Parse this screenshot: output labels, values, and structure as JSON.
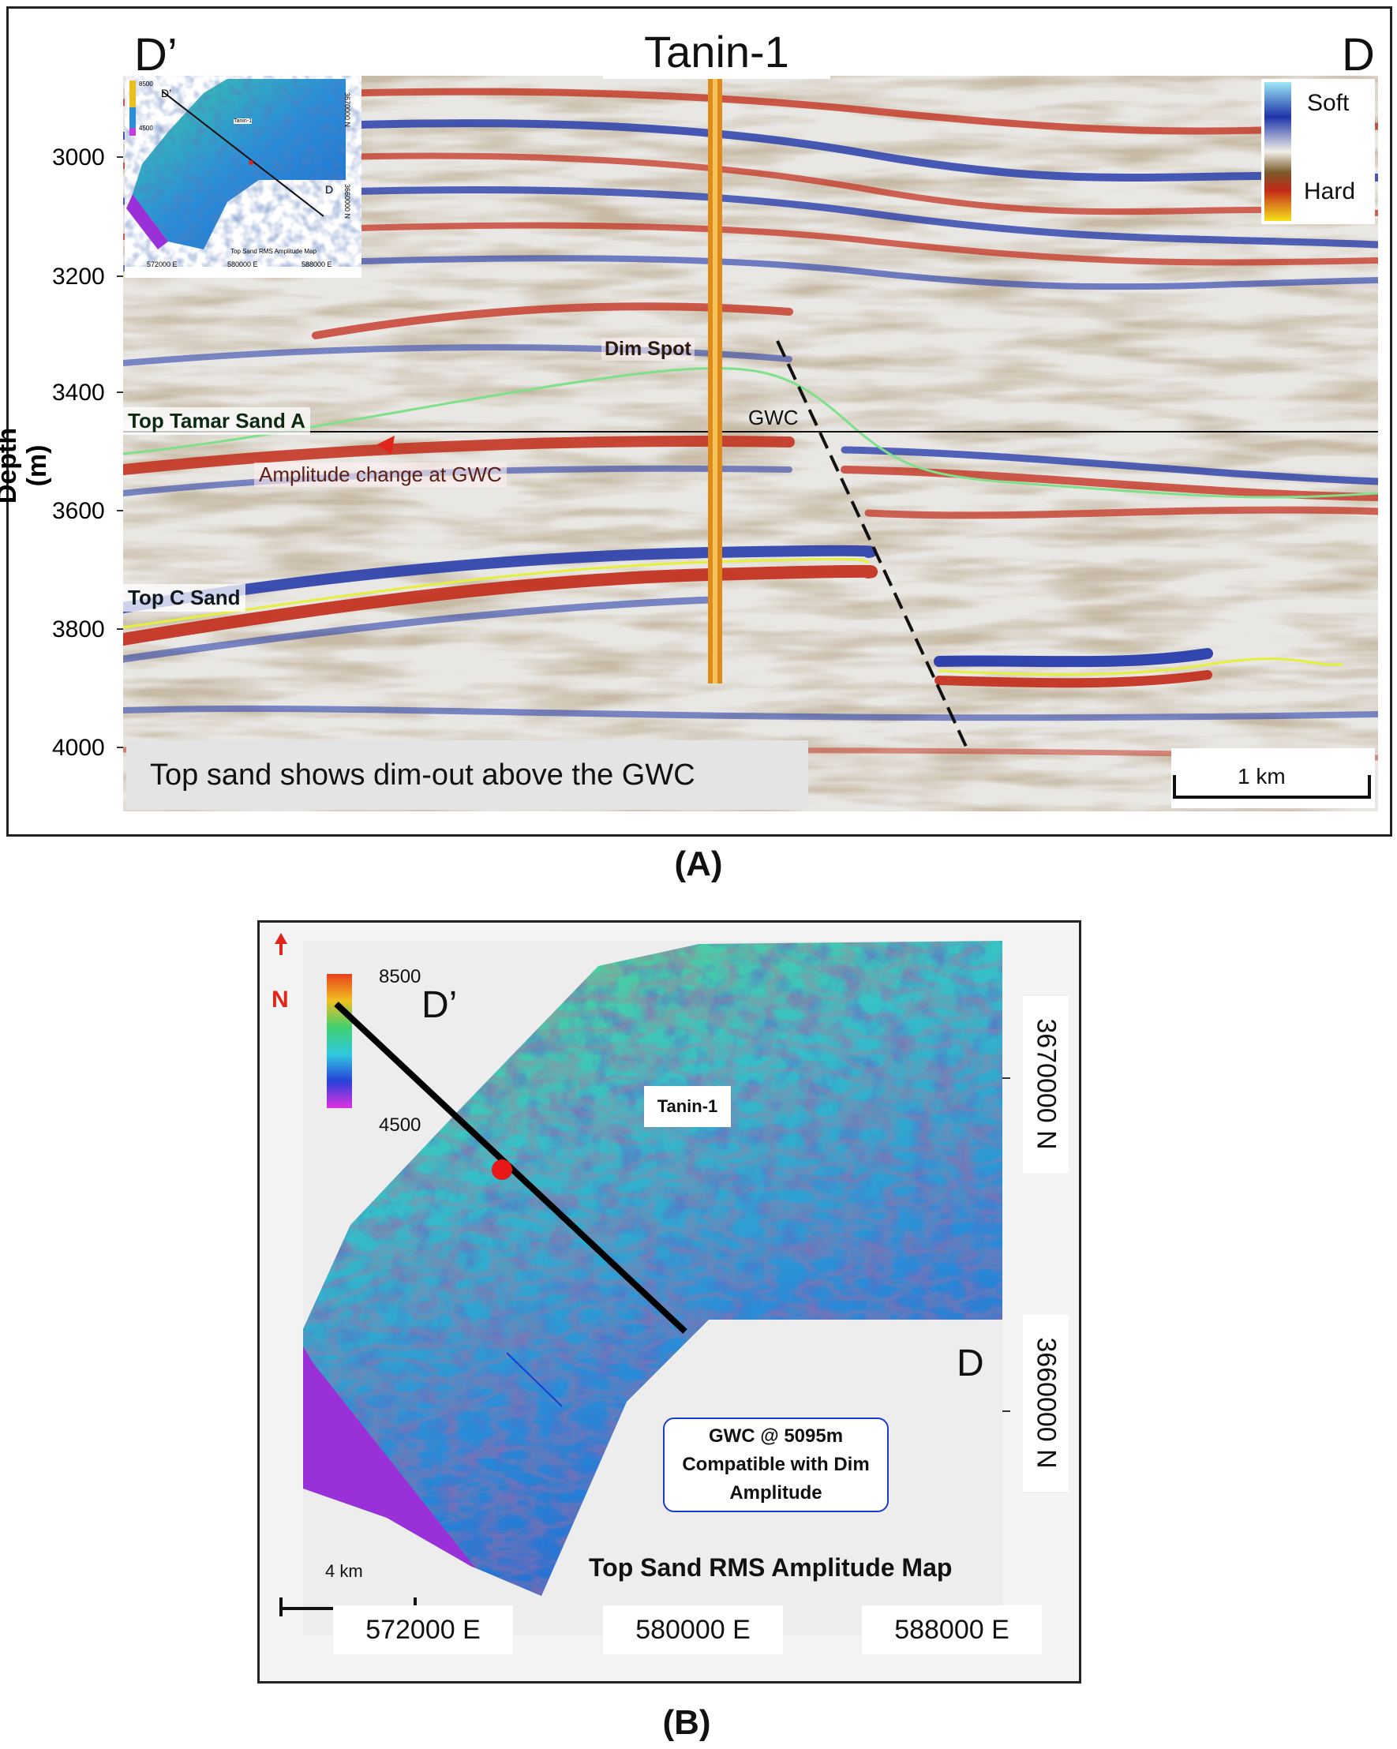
{
  "panel_a": {
    "caption": "(A)",
    "well_name": "Tanin-1",
    "left_end": "D’",
    "right_end": "D",
    "axis_title_line1": "Depth",
    "axis_title_line2": "(m)",
    "depth_ticks": [
      "3000",
      "3200",
      "3400",
      "3600",
      "3800",
      "4000"
    ],
    "legend": {
      "soft": "Soft",
      "hard": "Hard"
    },
    "labels": {
      "dim_spot": "Dim Spot",
      "gwc": "GWC",
      "top_tamar_sand_a": "Top Tamar Sand A",
      "amplitude_change": "Amplitude change at GWC",
      "top_c_sand": "Top C Sand"
    },
    "note": "Top sand shows dim-out above the GWC",
    "scale_bar": "1 km",
    "inset": {
      "title": "Top Sand RMS Amplitude Map",
      "well": "Tanin-1",
      "end_start": "D’",
      "end_stop": "D",
      "colorbar_max": "8500",
      "colorbar_min": "4500",
      "eastings": [
        "572000 E",
        "580000 E",
        "588000 E"
      ],
      "northings": [
        "3670000 N",
        "3660000 N"
      ]
    }
  },
  "panel_b": {
    "caption": "(B)",
    "north_label": "N",
    "colorbar_max": "8500",
    "colorbar_min": "4500",
    "section_start": "D’",
    "section_end": "D",
    "well_name": "Tanin-1",
    "northings": [
      "3670000 N",
      "3660000 N"
    ],
    "eastings": [
      "572000 E",
      "580000 E",
      "588000 E"
    ],
    "callout": [
      "GWC @ 5095m",
      "Compatible with Dim",
      "Amplitude"
    ],
    "map_title": "Top Sand RMS Amplitude Map",
    "scale_bar": "4 km"
  },
  "colors": {
    "soft_blue": "#1d34a8",
    "hard_red": "#c22a18",
    "horizon_green": "#7fe08a",
    "horizon_yellow": "#e6f03a",
    "well_orange": "#e08a1c",
    "callout_blue": "#1a3ad0"
  }
}
